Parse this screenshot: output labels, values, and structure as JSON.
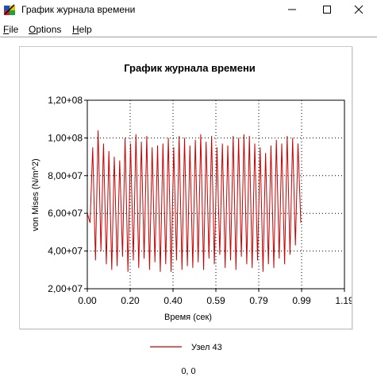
{
  "window": {
    "title": "График журнала времени",
    "icon": "lsdyna-app-icon"
  },
  "menu": {
    "file": {
      "u": "F",
      "rest": "ile"
    },
    "options": {
      "u": "O",
      "rest": "ptions"
    },
    "help": {
      "u": "H",
      "rest": "elp"
    }
  },
  "chart_data": {
    "type": "line",
    "title": "График журнала времени",
    "xlabel": "Время (сек)",
    "ylabel": "von Mises (N/m^2)",
    "xlim": [
      0,
      1.19
    ],
    "ylim": [
      20000000,
      120000000
    ],
    "x_ticks": [
      "0.00",
      "0.20",
      "0.40",
      "0.59",
      "0.79",
      "0.99",
      "1.19"
    ],
    "y_ticks": [
      "2,00+07",
      "4,00+07",
      "6,00+07",
      "8,00+07",
      "1,00+08",
      "1,20+08"
    ],
    "grid": true,
    "line_color": "#cc0000",
    "series": [
      {
        "name": "Узел 43",
        "x": [
          0,
          0.013,
          0.025,
          0.038,
          0.05,
          0.063,
          0.075,
          0.088,
          0.1,
          0.113,
          0.125,
          0.138,
          0.15,
          0.163,
          0.175,
          0.188,
          0.2,
          0.213,
          0.225,
          0.238,
          0.25,
          0.263,
          0.275,
          0.288,
          0.3,
          0.313,
          0.325,
          0.338,
          0.35,
          0.363,
          0.375,
          0.388,
          0.4,
          0.413,
          0.425,
          0.438,
          0.45,
          0.463,
          0.475,
          0.488,
          0.5,
          0.513,
          0.525,
          0.538,
          0.55,
          0.563,
          0.575,
          0.588,
          0.6,
          0.613,
          0.625,
          0.638,
          0.65,
          0.663,
          0.675,
          0.688,
          0.7,
          0.713,
          0.725,
          0.738,
          0.75,
          0.763,
          0.775,
          0.788,
          0.8,
          0.813,
          0.825,
          0.838,
          0.85,
          0.863,
          0.875,
          0.888,
          0.9,
          0.913,
          0.925,
          0.938,
          0.95,
          0.963,
          0.975,
          0.988
        ],
        "values": [
          60000000,
          55000000,
          95000000,
          35000000,
          104000000,
          40000000,
          97000000,
          33000000,
          93000000,
          30000000,
          90000000,
          32000000,
          88000000,
          37000000,
          100000000,
          29000000,
          97000000,
          35000000,
          102000000,
          31000000,
          98000000,
          36000000,
          101000000,
          30000000,
          95000000,
          34000000,
          96000000,
          29000000,
          97000000,
          33000000,
          100000000,
          29000000,
          95000000,
          35000000,
          101000000,
          30000000,
          100000000,
          32000000,
          96000000,
          31000000,
          99000000,
          34000000,
          102000000,
          30000000,
          98000000,
          36000000,
          101000000,
          33000000,
          95000000,
          38000000,
          97000000,
          31000000,
          96000000,
          35000000,
          101000000,
          30000000,
          100000000,
          37000000,
          102000000,
          33000000,
          101000000,
          31000000,
          97000000,
          35000000,
          95000000,
          29000000,
          92000000,
          33000000,
          96000000,
          31000000,
          99000000,
          36000000,
          97000000,
          33000000,
          101000000,
          38000000,
          100000000,
          43000000,
          97000000,
          55000000
        ]
      }
    ]
  },
  "status": {
    "coords": "0, 0"
  }
}
